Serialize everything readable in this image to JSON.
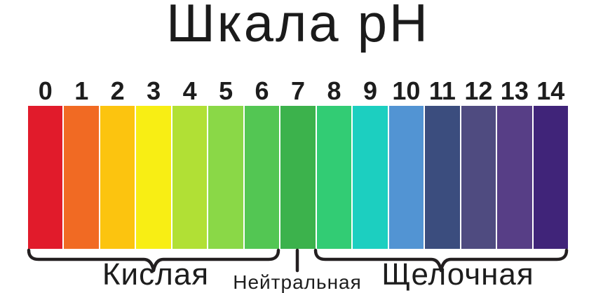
{
  "page": {
    "background": "#ffffff",
    "text_color": "#1d1d1d",
    "line_color": "#231f20"
  },
  "chart_data": {
    "type": "scale",
    "title": "Шкала pH",
    "categories": [
      "0",
      "1",
      "2",
      "3",
      "4",
      "5",
      "6",
      "7",
      "8",
      "9",
      "10",
      "11",
      "12",
      "13",
      "14"
    ],
    "colors": [
      "#e11b2b",
      "#f16a23",
      "#fcc40f",
      "#f8ee14",
      "#b1e035",
      "#8ad847",
      "#53c653",
      "#3cb24c",
      "#32cc74",
      "#1ccfc0",
      "#5294d3",
      "#3b4d7e",
      "#4f4b80",
      "#573e86",
      "#402479"
    ],
    "zones": [
      {
        "label": "Кислая",
        "from": 0,
        "to": 6
      },
      {
        "label": "Нейтральная",
        "from": 7,
        "to": 7
      },
      {
        "label": "Щелочная",
        "from": 8,
        "to": 14
      }
    ]
  }
}
